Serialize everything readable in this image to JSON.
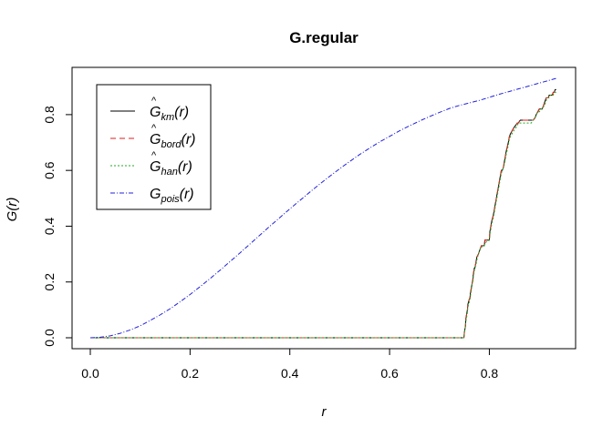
{
  "chart_data": {
    "type": "line",
    "title": "G.regular",
    "xlabel": "r",
    "ylabel": "G(r)",
    "xlim": [
      0,
      0.94
    ],
    "ylim": [
      0,
      0.94
    ],
    "xticks": [
      "0.0",
      "0.2",
      "0.4",
      "0.6",
      "0.8"
    ],
    "xtick_values": [
      0.0,
      0.2,
      0.4,
      0.6,
      0.8
    ],
    "yticks": [
      "0.0",
      "0.2",
      "0.4",
      "0.6",
      "0.8"
    ],
    "ytick_values": [
      0.0,
      0.2,
      0.4,
      0.6,
      0.8
    ],
    "grid": false,
    "legend_position": "top-left",
    "series": [
      {
        "name": "G-hat km(r)",
        "legend_base": "G",
        "legend_hat": "^",
        "legend_sub": "km",
        "legend_arg": "(r)",
        "color": "#000000",
        "dash": "solid",
        "x": [
          0,
          0.749,
          0.75,
          0.752,
          0.753,
          0.756,
          0.757,
          0.76,
          0.761,
          0.762,
          0.764,
          0.765,
          0.767,
          0.768,
          0.77,
          0.771,
          0.773,
          0.775,
          0.778,
          0.78,
          0.782,
          0.784,
          0.786,
          0.79,
          0.791,
          0.8,
          0.801,
          0.803,
          0.805,
          0.808,
          0.81,
          0.812,
          0.814,
          0.816,
          0.818,
          0.82,
          0.822,
          0.824,
          0.826,
          0.828,
          0.83,
          0.832,
          0.834,
          0.838,
          0.84,
          0.842,
          0.845,
          0.848,
          0.852,
          0.856,
          0.858,
          0.862,
          0.865,
          0.87,
          0.875,
          0.88,
          0.884,
          0.888,
          0.892,
          0.894,
          0.897,
          0.9,
          0.904,
          0.906,
          0.908,
          0.91,
          0.912,
          0.914,
          0.916,
          0.918,
          0.92,
          0.922,
          0.924,
          0.926,
          0.928,
          0.93,
          0.932,
          0.934
        ],
        "y": [
          0,
          0,
          0.02,
          0.04,
          0.07,
          0.1,
          0.12,
          0.14,
          0.14,
          0.16,
          0.18,
          0.19,
          0.21,
          0.23,
          0.25,
          0.25,
          0.27,
          0.29,
          0.3,
          0.31,
          0.32,
          0.33,
          0.33,
          0.33,
          0.35,
          0.35,
          0.38,
          0.4,
          0.42,
          0.44,
          0.46,
          0.48,
          0.5,
          0.52,
          0.54,
          0.56,
          0.58,
          0.6,
          0.6,
          0.61,
          0.63,
          0.65,
          0.67,
          0.7,
          0.72,
          0.73,
          0.74,
          0.75,
          0.76,
          0.77,
          0.77,
          0.78,
          0.78,
          0.78,
          0.78,
          0.78,
          0.78,
          0.78,
          0.79,
          0.8,
          0.81,
          0.82,
          0.82,
          0.82,
          0.83,
          0.84,
          0.85,
          0.86,
          0.86,
          0.86,
          0.87,
          0.87,
          0.87,
          0.87,
          0.88,
          0.88,
          0.89,
          0.89
        ]
      },
      {
        "name": "G-hat bord(r)",
        "legend_base": "G",
        "legend_hat": "^",
        "legend_sub": "bord",
        "legend_arg": "(r)",
        "color": "#df1f1f",
        "dash": "6,4",
        "x": [
          0,
          0.749,
          0.75,
          0.752,
          0.753,
          0.756,
          0.757,
          0.76,
          0.761,
          0.762,
          0.764,
          0.765,
          0.767,
          0.768,
          0.77,
          0.771,
          0.773,
          0.775,
          0.778,
          0.78,
          0.782,
          0.784,
          0.786,
          0.79,
          0.791,
          0.8,
          0.801,
          0.803,
          0.805,
          0.808,
          0.81,
          0.812,
          0.814,
          0.816,
          0.818,
          0.82,
          0.822,
          0.824,
          0.826,
          0.828,
          0.83,
          0.832,
          0.834,
          0.838,
          0.84,
          0.842,
          0.845,
          0.848,
          0.852,
          0.856,
          0.858,
          0.862,
          0.865,
          0.87,
          0.875,
          0.88,
          0.884,
          0.888,
          0.892,
          0.894,
          0.897,
          0.9,
          0.904,
          0.906,
          0.908,
          0.91,
          0.912,
          0.914,
          0.916,
          0.918,
          0.92,
          0.922,
          0.924,
          0.926,
          0.928,
          0.93,
          0.932,
          0.934
        ],
        "y": [
          0,
          0,
          0.02,
          0.04,
          0.07,
          0.1,
          0.12,
          0.14,
          0.14,
          0.16,
          0.18,
          0.19,
          0.21,
          0.23,
          0.25,
          0.25,
          0.27,
          0.29,
          0.3,
          0.31,
          0.32,
          0.33,
          0.33,
          0.33,
          0.35,
          0.35,
          0.38,
          0.4,
          0.42,
          0.44,
          0.46,
          0.48,
          0.5,
          0.52,
          0.54,
          0.56,
          0.58,
          0.6,
          0.6,
          0.61,
          0.63,
          0.65,
          0.67,
          0.7,
          0.72,
          0.73,
          0.74,
          0.75,
          0.76,
          0.77,
          0.77,
          0.78,
          0.78,
          0.78,
          0.78,
          0.78,
          0.78,
          0.78,
          0.79,
          0.8,
          0.81,
          0.82,
          0.82,
          0.82,
          0.83,
          0.84,
          0.85,
          0.86,
          0.86,
          0.86,
          0.87,
          0.87,
          0.87,
          0.87,
          0.88,
          0.88,
          0.89,
          0.89
        ]
      },
      {
        "name": "G-hat han(r)",
        "legend_base": "G",
        "legend_hat": "^",
        "legend_sub": "han",
        "legend_arg": "(r)",
        "color": "#22aa22",
        "dash": "2,2",
        "x": [
          0,
          0.749,
          0.75,
          0.752,
          0.753,
          0.756,
          0.757,
          0.76,
          0.761,
          0.762,
          0.764,
          0.765,
          0.767,
          0.768,
          0.77,
          0.771,
          0.773,
          0.775,
          0.778,
          0.78,
          0.782,
          0.784,
          0.786,
          0.79,
          0.791,
          0.8,
          0.801,
          0.803,
          0.805,
          0.808,
          0.81,
          0.812,
          0.814,
          0.816,
          0.818,
          0.82,
          0.822,
          0.824,
          0.826,
          0.828,
          0.83,
          0.832,
          0.834,
          0.838,
          0.84,
          0.842,
          0.845,
          0.848,
          0.852,
          0.856,
          0.858,
          0.862,
          0.865,
          0.87,
          0.875,
          0.88,
          0.884,
          0.888,
          0.892,
          0.894,
          0.897,
          0.9,
          0.904,
          0.906,
          0.908,
          0.91,
          0.912,
          0.914,
          0.916,
          0.918,
          0.92,
          0.922,
          0.924,
          0.926,
          0.928,
          0.93,
          0.932,
          0.934
        ],
        "y": [
          0,
          0,
          0.02,
          0.04,
          0.06,
          0.09,
          0.11,
          0.13,
          0.14,
          0.15,
          0.17,
          0.19,
          0.2,
          0.22,
          0.24,
          0.25,
          0.26,
          0.28,
          0.3,
          0.31,
          0.32,
          0.32,
          0.33,
          0.33,
          0.34,
          0.35,
          0.37,
          0.39,
          0.41,
          0.43,
          0.45,
          0.47,
          0.49,
          0.51,
          0.53,
          0.55,
          0.57,
          0.59,
          0.6,
          0.61,
          0.62,
          0.64,
          0.66,
          0.69,
          0.71,
          0.72,
          0.73,
          0.74,
          0.75,
          0.76,
          0.77,
          0.77,
          0.77,
          0.77,
          0.77,
          0.77,
          0.77,
          0.78,
          0.79,
          0.8,
          0.81,
          0.81,
          0.82,
          0.82,
          0.83,
          0.83,
          0.84,
          0.85,
          0.86,
          0.86,
          0.86,
          0.87,
          0.87,
          0.87,
          0.87,
          0.88,
          0.88,
          0.88
        ]
      },
      {
        "name": "G pois(r)",
        "legend_base": "G",
        "legend_hat": "",
        "legend_sub": "pois",
        "legend_arg": "(r)",
        "color": "#2222dd",
        "dash": "5,2,1,2",
        "x": [
          0,
          0.02,
          0.04,
          0.06,
          0.08,
          0.1,
          0.12,
          0.14,
          0.16,
          0.18,
          0.2,
          0.22,
          0.24,
          0.26,
          0.28,
          0.3,
          0.32,
          0.34,
          0.36,
          0.38,
          0.4,
          0.42,
          0.44,
          0.46,
          0.48,
          0.5,
          0.52,
          0.54,
          0.56,
          0.58,
          0.6,
          0.62,
          0.64,
          0.66,
          0.68,
          0.7,
          0.72,
          0.74,
          0.76,
          0.78,
          0.8,
          0.82,
          0.84,
          0.86,
          0.88,
          0.9,
          0.92,
          0.934
        ],
        "y": [
          0,
          0.002,
          0.007,
          0.016,
          0.028,
          0.043,
          0.062,
          0.082,
          0.104,
          0.129,
          0.155,
          0.183,
          0.212,
          0.242,
          0.273,
          0.304,
          0.336,
          0.368,
          0.4,
          0.431,
          0.462,
          0.492,
          0.522,
          0.551,
          0.579,
          0.606,
          0.632,
          0.657,
          0.68,
          0.702,
          0.722,
          0.742,
          0.76,
          0.777,
          0.793,
          0.808,
          0.822,
          0.833,
          0.842,
          0.851,
          0.862,
          0.873,
          0.883,
          0.893,
          0.903,
          0.913,
          0.923,
          0.93
        ]
      }
    ]
  }
}
